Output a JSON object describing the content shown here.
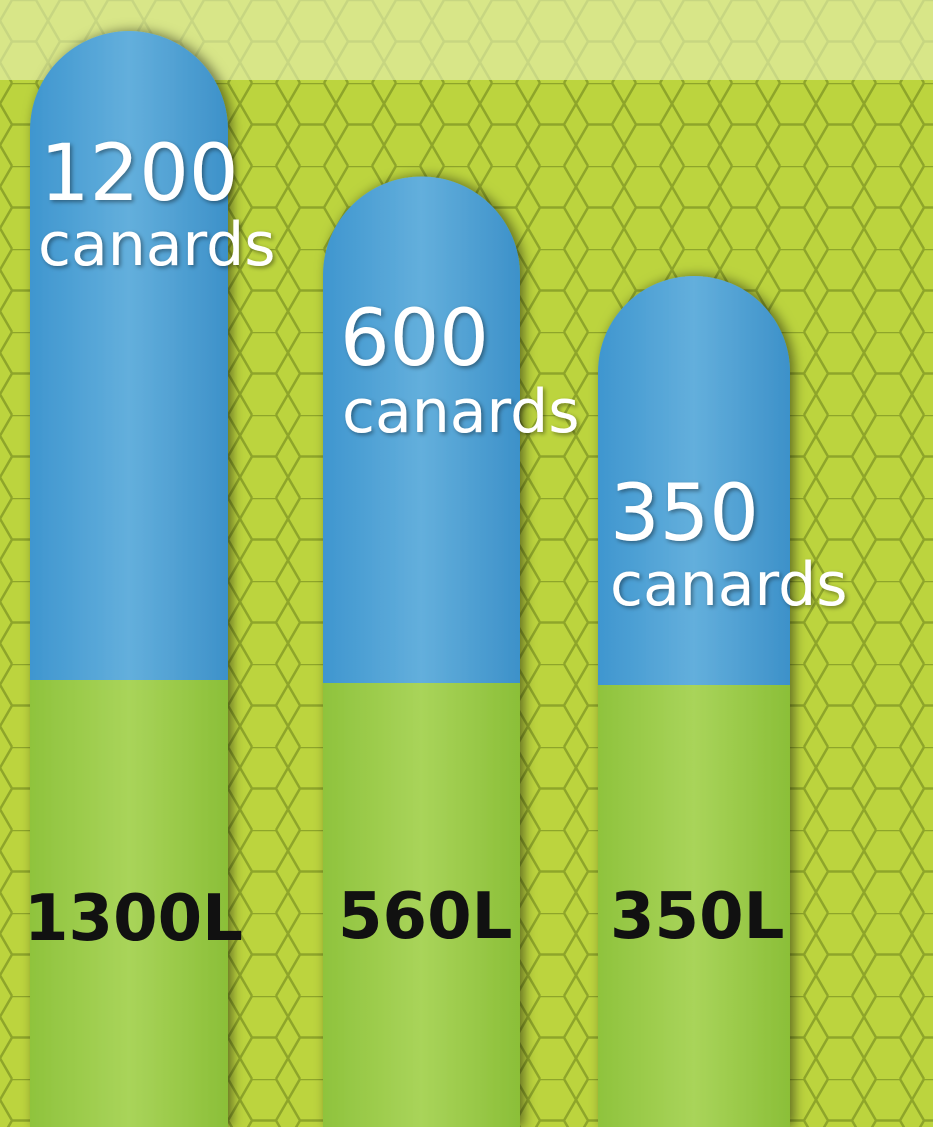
{
  "items": [
    {
      "count": "1200",
      "unit": "canards",
      "volume": "1300L"
    },
    {
      "count": "600",
      "unit": "canards",
      "volume": "560L"
    },
    {
      "count": "350",
      "unit": "canards",
      "volume": "350L"
    }
  ]
}
